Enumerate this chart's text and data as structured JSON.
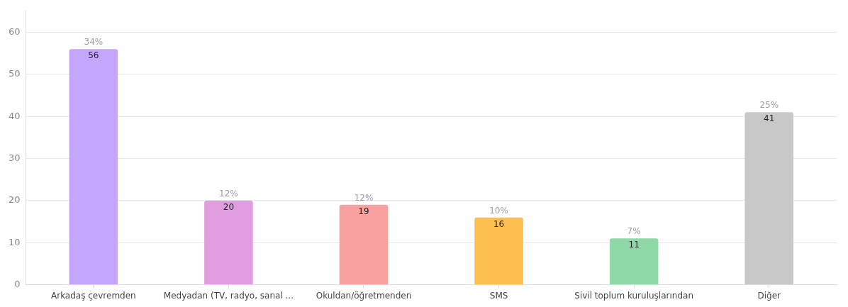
{
  "chart_data": {
    "type": "bar",
    "categories": [
      "Arkadaş çevremden",
      "Medyadan (TV, radyo, sanal ...",
      "Okuldan/öğretmenden",
      "SMS",
      "Sivil toplum kuruluşlarından",
      "Diğer"
    ],
    "values": [
      56,
      20,
      19,
      16,
      11,
      41
    ],
    "colors": [
      "#c4a6fc",
      "#e09ddf",
      "#f9a0a0",
      "#fdbf50",
      "#8fd8a8",
      "#c8c8c8"
    ],
    "ylim": [
      0,
      65
    ],
    "yticks": [
      0,
      10,
      20,
      30,
      40,
      50,
      60
    ],
    "grid": "y",
    "data_labels": true,
    "annotations": [
      {
        "text": "34%",
        "x": "Arkadaş çevremden",
        "y": 56
      },
      {
        "text": "12%",
        "x": "Medyadan (TV, radyo, sanal ...",
        "y": 20
      },
      {
        "text": "12%",
        "x": "Okuldan/öğretmenden",
        "y": 19
      },
      {
        "text": "10%",
        "x": "SMS",
        "y": 16
      },
      {
        "text": "7%",
        "x": "Sivil toplum kuruluşlarından",
        "y": 11
      },
      {
        "text": "25%",
        "x": "Diğer",
        "y": 41
      }
    ]
  }
}
